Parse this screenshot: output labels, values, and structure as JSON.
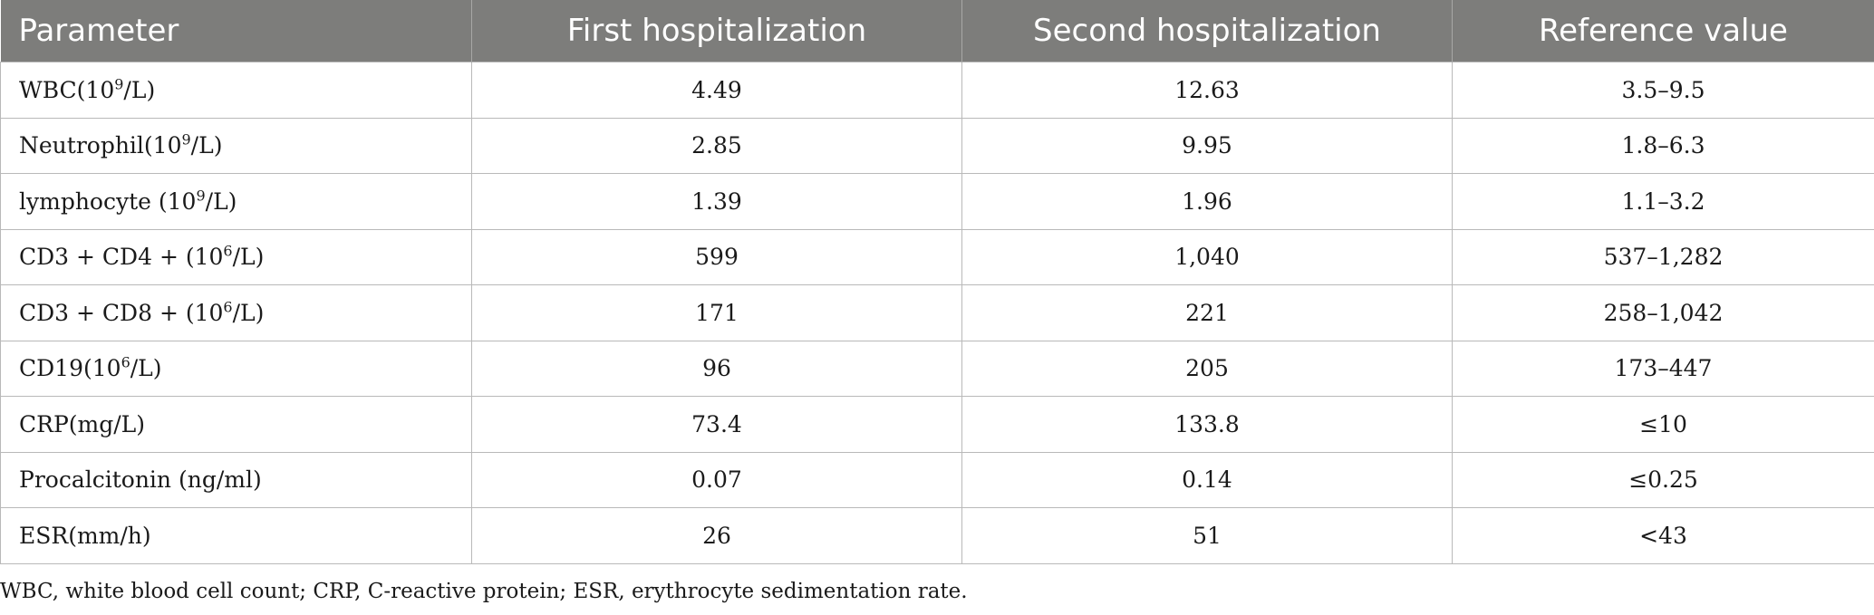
{
  "table": {
    "headers": [
      "Parameter",
      "First hospitalization",
      "Second hospitalization",
      "Reference value"
    ],
    "rows": [
      {
        "param_pre": "WBC(10",
        "param_sup": "9",
        "param_post": "/L)",
        "first": "4.49",
        "second": "12.63",
        "reference": "3.5–9.5"
      },
      {
        "param_pre": "Neutrophil(10",
        "param_sup": "9",
        "param_post": "/L)",
        "first": "2.85",
        "second": "9.95",
        "reference": "1.8–6.3"
      },
      {
        "param_pre": "lymphocyte (10",
        "param_sup": "9",
        "param_post": "/L)",
        "first": "1.39",
        "second": "1.96",
        "reference": "1.1–3.2"
      },
      {
        "param_pre": "CD3 + CD4 + (10",
        "param_sup": "6",
        "param_post": "/L)",
        "first": "599",
        "second": "1,040",
        "reference": "537–1,282"
      },
      {
        "param_pre": "CD3 + CD8 + (10",
        "param_sup": "6",
        "param_post": "/L)",
        "first": "171",
        "second": "221",
        "reference": "258–1,042"
      },
      {
        "param_pre": "CD19(10",
        "param_sup": "6",
        "param_post": "/L)",
        "first": "96",
        "second": "205",
        "reference": "173–447"
      },
      {
        "param_pre": "CRP(mg/L)",
        "param_sup": "",
        "param_post": "",
        "first": "73.4",
        "second": "133.8",
        "reference": "≤10"
      },
      {
        "param_pre": "Procalcitonin (ng/ml)",
        "param_sup": "",
        "param_post": "",
        "first": "0.07",
        "second": "0.14",
        "reference": "≤0.25"
      },
      {
        "param_pre": "ESR(mm/h)",
        "param_sup": "",
        "param_post": "",
        "first": "26",
        "second": "51",
        "reference": "<43"
      }
    ]
  },
  "footnote": "WBC, white blood cell count; CRP, C-reactive protein; ESR, erythrocyte sedimentation rate."
}
